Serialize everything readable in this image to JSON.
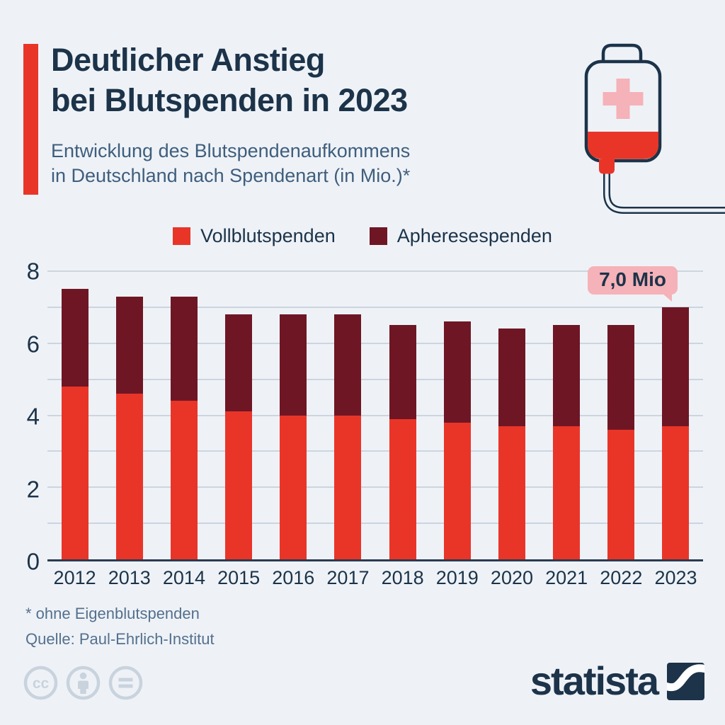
{
  "header": {
    "title_line1": "Deutlicher Anstieg",
    "title_line2": "bei Blutspenden in 2023",
    "subtitle_line1": "Entwicklung des Blutspendenaufkommens",
    "subtitle_line2": "in Deutschland nach Spendenart (in Mio.)*"
  },
  "legend": [
    {
      "label": "Vollblutspenden",
      "color": "#e93528"
    },
    {
      "label": "Apheresespenden",
      "color": "#6f1625"
    }
  ],
  "chart_data": {
    "type": "bar",
    "stacked": true,
    "categories": [
      "2012",
      "2013",
      "2014",
      "2015",
      "2016",
      "2017",
      "2018",
      "2019",
      "2020",
      "2021",
      "2022",
      "2023"
    ],
    "series": [
      {
        "name": "Vollblutspenden",
        "color": "#e93528",
        "values": [
          4.8,
          4.6,
          4.4,
          4.1,
          4.0,
          4.0,
          3.9,
          3.8,
          3.7,
          3.7,
          3.6,
          3.7
        ]
      },
      {
        "name": "Apheresespenden",
        "color": "#6f1625",
        "values": [
          2.7,
          2.7,
          2.9,
          2.7,
          2.8,
          2.8,
          2.6,
          2.8,
          2.7,
          2.8,
          2.9,
          3.3
        ]
      }
    ],
    "totals": [
      7.5,
      7.3,
      7.3,
      6.8,
      6.8,
      6.8,
      6.5,
      6.6,
      6.4,
      6.5,
      6.5,
      7.0
    ],
    "ylim": [
      0,
      8
    ],
    "yticks": [
      0,
      2,
      4,
      6,
      8
    ],
    "gridlines": [
      1,
      2,
      3,
      4,
      5,
      6,
      7,
      8
    ],
    "grid": true,
    "legend_position": "top",
    "annotation": {
      "text": "7,0 Mio",
      "target": "2023"
    }
  },
  "footer": {
    "footnote": "* ohne Eigenblutspenden",
    "source": "Quelle: Paul-Ehrlich-Institut"
  },
  "branding": {
    "logo_text": "statista",
    "license_icons": [
      "cc-icon",
      "by-person-icon",
      "nd-equals-icon"
    ]
  },
  "icons": {
    "top_right": "blood-bag-icon"
  },
  "colors": {
    "background": "#eef2f7",
    "navy": "#1c3349",
    "slate": "#3f5e7d",
    "red": "#e93528",
    "dark_red": "#6f1625",
    "pink": "#f5b2b8",
    "gridline": "#ccd5df",
    "axis": "#2a3b50",
    "muted": "#54708d",
    "license_gray": "#c9d3dd"
  }
}
